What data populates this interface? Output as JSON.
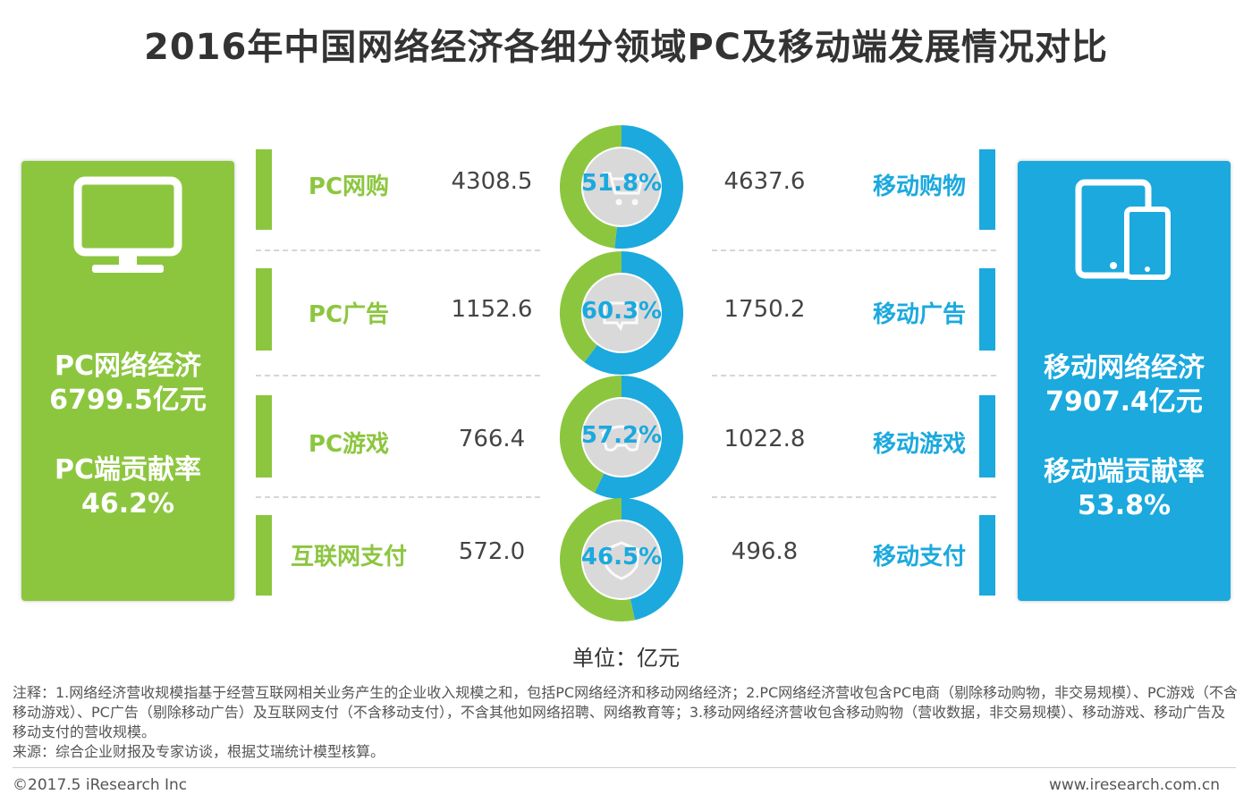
{
  "title": "2016年中国网络经济各细分领域PC及移动端发展情况对比",
  "colors": {
    "pc": "#8cc63f",
    "mobile": "#1ba9de",
    "inner": "#d9d9d9"
  },
  "left_panel": {
    "line1": "PC网络经济",
    "line2": "6799.5亿元",
    "line3": "PC端贡献率",
    "line4": "46.2%",
    "icon": "monitor-icon"
  },
  "right_panel": {
    "line1": "移动网络经济",
    "line2": "7907.4亿元",
    "line3": "移动端贡献率",
    "line4": "53.8%",
    "icon": "tablet-phone-icon"
  },
  "unit": "单位：亿元",
  "note": "注释：1.网络经济营收规模指基于经营互联网相关业务产生的企业收入规模之和，包括PC网络经济和移动网络经济；2.PC网络经济营收包含PC电商（剔除移动购物，非交易规模）、PC游戏（不含移动游戏）、PC广告（剔除移动广告）及互联网支付（不含移动支付），不含其他如网络招聘、网络教育等；3.移动网络经济营收包含移动购物（营收数据，非交易规模）、移动游戏、移动广告及移动支付的营收规模。",
  "source": "来源：综合企业财报及专家访谈，根据艾瑞统计模型核算。",
  "copyright": "©2017.5 iResearch Inc",
  "website": "www.iresearch.com.cn",
  "chart_data": {
    "type": "pie",
    "unit": "亿元",
    "rows": [
      {
        "pc_label": "PC网购",
        "pc_value": 4308.5,
        "mobile_value": 4637.6,
        "mobile_label": "移动购物",
        "mobile_share": "51.8%",
        "mobile_share_value": 51.8,
        "icon": "cart-icon"
      },
      {
        "pc_label": "PC广告",
        "pc_value": 1152.6,
        "mobile_value": 1750.2,
        "mobile_label": "移动广告",
        "mobile_share": "60.3%",
        "mobile_share_value": 60.3,
        "icon": "ad-tag-icon"
      },
      {
        "pc_label": "PC游戏",
        "pc_value": 766.4,
        "mobile_value": 1022.8,
        "mobile_label": "移动游戏",
        "mobile_share": "57.2%",
        "mobile_share_value": 57.2,
        "icon": "gamepad-icon"
      },
      {
        "pc_label": "互联网支付",
        "pc_value": "572.0",
        "mobile_value": 496.8,
        "mobile_label": "移动支付",
        "mobile_share": "46.5%",
        "mobile_share_value": 46.5,
        "icon": "shield-icon"
      }
    ]
  }
}
